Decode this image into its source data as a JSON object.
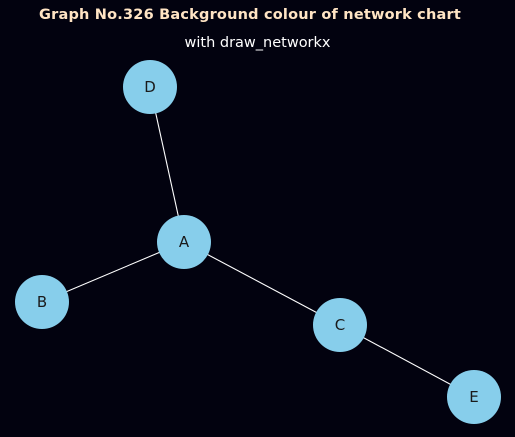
{
  "figure": {
    "title": "Graph No.326 Background colour of network chart",
    "subtitle": "with draw_networkx",
    "background_color": "#02020f",
    "title_color": "#ffe4c4",
    "subtitle_color": "#ffffff"
  },
  "network": {
    "node_color": "#87ceeb",
    "edge_color": "#ffffff",
    "label_color": "#1a1a1a",
    "nodes": [
      {
        "id": "A",
        "label": "A"
      },
      {
        "id": "B",
        "label": "B"
      },
      {
        "id": "C",
        "label": "C"
      },
      {
        "id": "D",
        "label": "D"
      },
      {
        "id": "E",
        "label": "E"
      }
    ],
    "edges": [
      {
        "source": "A",
        "target": "B"
      },
      {
        "source": "A",
        "target": "C"
      },
      {
        "source": "A",
        "target": "D"
      },
      {
        "source": "C",
        "target": "E"
      }
    ]
  }
}
